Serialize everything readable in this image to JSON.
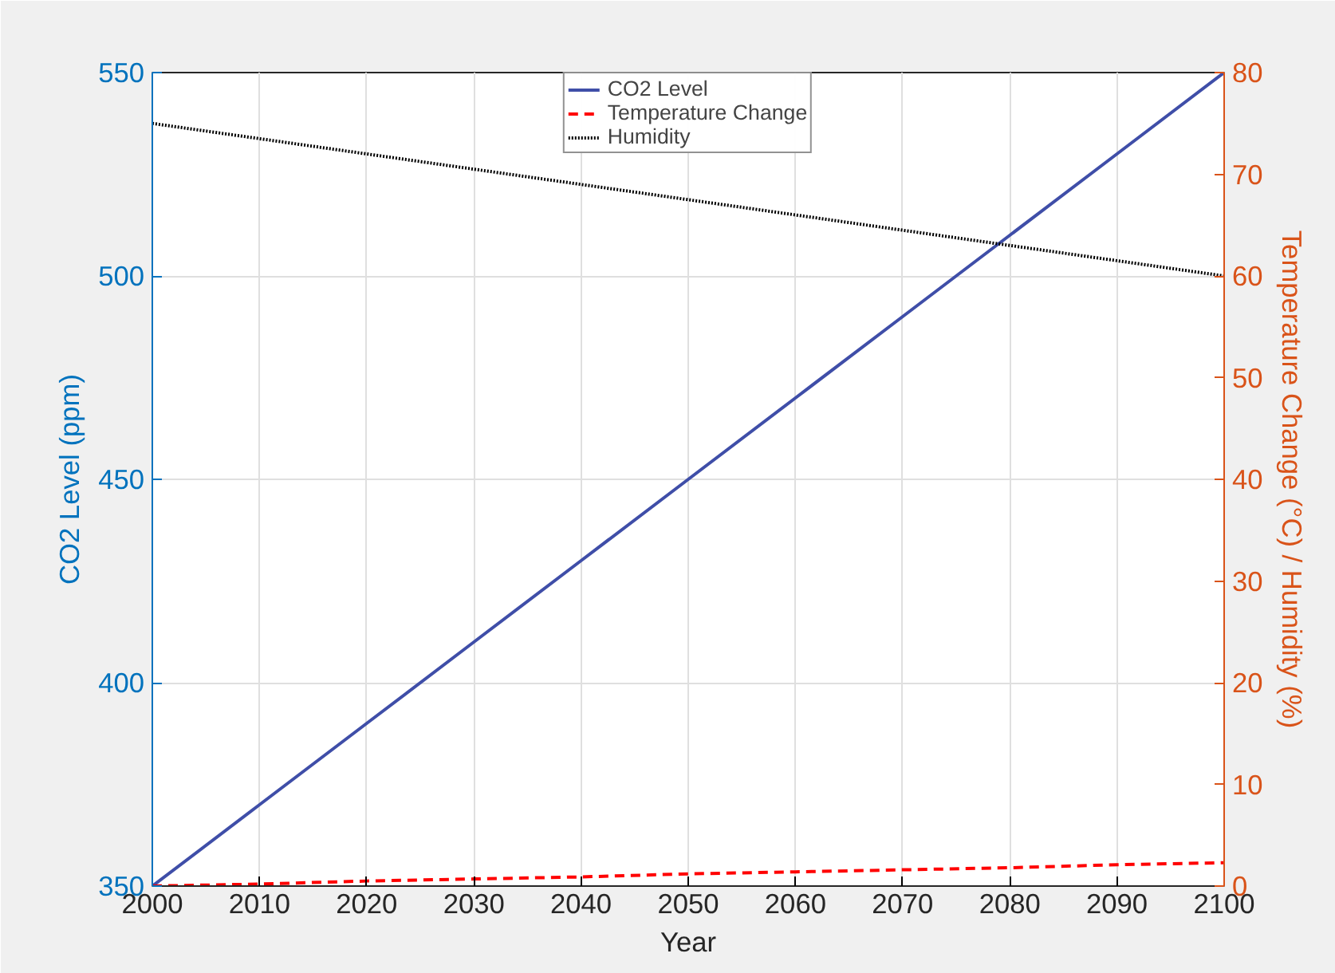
{
  "chart_data": {
    "type": "line",
    "xlabel": "Year",
    "ylabel": "CO2 Level (ppm)",
    "y2label": "Temperature Change (°C) / Humidity (%)",
    "x": [
      2000,
      2010,
      2020,
      2030,
      2040,
      2050,
      2060,
      2070,
      2080,
      2090,
      2100
    ],
    "series": [
      {
        "name": "CO2 Level",
        "color": "#3f4ea8",
        "line_style": "solid",
        "values": [
          350,
          370,
          390,
          410,
          430,
          450,
          470,
          490,
          510,
          530,
          550
        ]
      },
      {
        "name": "Temperature Change",
        "color": "#ff0000",
        "line_style": "dashed",
        "axis": "y2",
        "values": [
          0,
          0.2,
          0.5,
          0.7,
          0.9,
          1.2,
          1.4,
          1.6,
          1.8,
          2.1,
          2.3
        ]
      },
      {
        "name": "Humidity",
        "color": "#000000",
        "line_style": "dotted",
        "axis": "y2",
        "values": [
          75,
          73.5,
          72,
          70.5,
          69,
          67.5,
          66,
          64.5,
          63,
          61.5,
          60
        ]
      }
    ],
    "xlim": [
      2000,
      2100
    ],
    "xticks": [
      2000,
      2010,
      2020,
      2030,
      2040,
      2050,
      2060,
      2070,
      2080,
      2090,
      2100
    ],
    "ylim": [
      350,
      550
    ],
    "yticks": [
      350,
      400,
      450,
      500,
      550
    ],
    "y2lim": [
      0,
      80
    ],
    "y2ticks": [
      0,
      10,
      20,
      30,
      40,
      50,
      60,
      70,
      80
    ],
    "grid": true,
    "legend": "top",
    "marker": "none"
  }
}
